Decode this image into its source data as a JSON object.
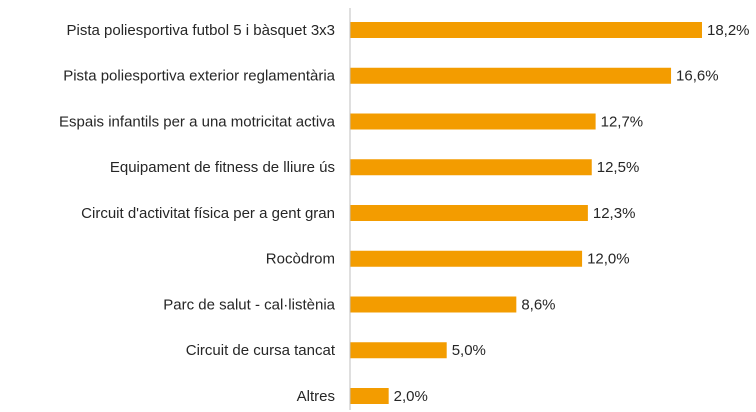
{
  "chart_data": {
    "type": "bar",
    "orientation": "horizontal",
    "categories": [
      "Pista poliesportiva futbol 5 i bàsquet 3x3",
      "Pista poliesportiva exterior reglamentària",
      "Espais infantils per a una motricitat activa",
      "Equipament de fitness de lliure ús",
      "Circuit d'activitat física per a gent gran",
      "Rocòdrom",
      "Parc de salut - cal·listènia",
      "Circuit de cursa tancat",
      "Altres"
    ],
    "values": [
      18.2,
      16.6,
      12.7,
      12.5,
      12.3,
      12.0,
      8.6,
      5.0,
      2.0
    ],
    "value_labels": [
      "18,2%",
      "16,6%",
      "12,7%",
      "12,5%",
      "12,3%",
      "12,0%",
      "8,6%",
      "5,0%",
      "2,0%"
    ],
    "color": "#f39c00"
  }
}
